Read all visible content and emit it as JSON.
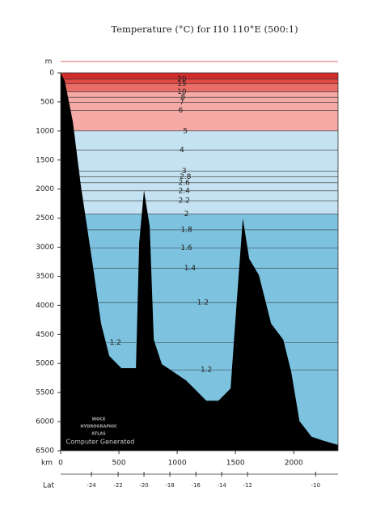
{
  "chart_data": {
    "type": "section",
    "title": "Temperature (°C) for I10 110°E (500:1)",
    "y_unit": "m",
    "x_unit": "km",
    "lat_label": "Lat",
    "watermark": [
      "WOCE",
      "HYDROGRAPHIC",
      "ATLAS"
    ],
    "credit": "Computer Generated",
    "xlim": [
      0,
      2380
    ],
    "ylim": [
      6500,
      0
    ],
    "xticks": [
      0,
      500,
      1000,
      1500,
      2000
    ],
    "yticks": [
      0,
      500,
      1000,
      1500,
      2000,
      2500,
      3000,
      3500,
      4000,
      4500,
      5000,
      5500,
      6000,
      6500
    ],
    "lat_ticks": [
      {
        "value": 264,
        "label": "-24"
      },
      {
        "value": 493,
        "label": "-22"
      },
      {
        "value": 715,
        "label": "-20"
      },
      {
        "value": 937,
        "label": "-18"
      },
      {
        "value": 1160,
        "label": "-16"
      },
      {
        "value": 1382,
        "label": "-14"
      },
      {
        "value": 1604,
        "label": "-12"
      },
      {
        "value": 2188,
        "label": "-10"
      }
    ],
    "top_color": "#d12b2b",
    "contours": [
      {
        "label": "20",
        "depth": 110,
        "label_x": 1040,
        "fill": "#df4a46"
      },
      {
        "label": "15",
        "depth": 190,
        "label_x": 1040,
        "fill": "#ea6e68"
      },
      {
        "label": "10",
        "depth": 330,
        "label_x": 1040,
        "fill": "#f5aaa6"
      },
      {
        "label": "8",
        "depth": 420,
        "label_x": 1050
      },
      {
        "label": "7",
        "depth": 510,
        "label_x": 1040
      },
      {
        "label": "6",
        "depth": 650,
        "label_x": 1030
      },
      {
        "label": "5",
        "depth": 1000,
        "label_x": 1070,
        "fill": "#c4e2f1"
      },
      {
        "label": "4",
        "depth": 1330,
        "label_x": 1040
      },
      {
        "label": "3",
        "depth": 1690,
        "label_x": 1060
      },
      {
        "label": "2.8",
        "depth": 1790,
        "label_x": 1070
      },
      {
        "label": "2.6",
        "depth": 1890,
        "label_x": 1060
      },
      {
        "label": "2.4",
        "depth": 2030,
        "label_x": 1060
      },
      {
        "label": "2.2",
        "depth": 2200,
        "label_x": 1060
      },
      {
        "label": "2",
        "depth": 2430,
        "label_x": 1080,
        "fill": "#7dc3e0"
      },
      {
        "label": "1.8",
        "depth": 2700,
        "label_x": 1080
      },
      {
        "label": "1.6",
        "depth": 3010,
        "label_x": 1080
      },
      {
        "label": "1.4",
        "depth": 3360,
        "label_x": 1110
      },
      {
        "label": "1.2",
        "depth": 3950,
        "label_x": 1220
      },
      {
        "label": "1.2",
        "depth": 4640,
        "label_x": 470
      },
      {
        "label": "1.2",
        "depth": 5110,
        "label_x": 1250
      }
    ],
    "bathymetry": {
      "x": [
        0,
        35,
        104,
        174,
        278,
        347,
        417,
        521,
        625,
        646,
        674,
        715,
        764,
        799,
        868,
        972,
        1076,
        1146,
        1250,
        1354,
        1458,
        1507,
        1563,
        1618,
        1701,
        1806,
        1910,
        1979,
        2049,
        2153,
        2257,
        2380
      ],
      "depth": [
        0,
        140,
        835,
        1950,
        3340,
        4315,
        4870,
        5080,
        5080,
        5080,
        2920,
        2020,
        2645,
        4590,
        5010,
        5150,
        5290,
        5430,
        5640,
        5640,
        5430,
        4040,
        2505,
        3200,
        3480,
        4315,
        4590,
        5150,
        5990,
        6260,
        6330,
        6400
      ],
      "color": "#000000"
    }
  }
}
